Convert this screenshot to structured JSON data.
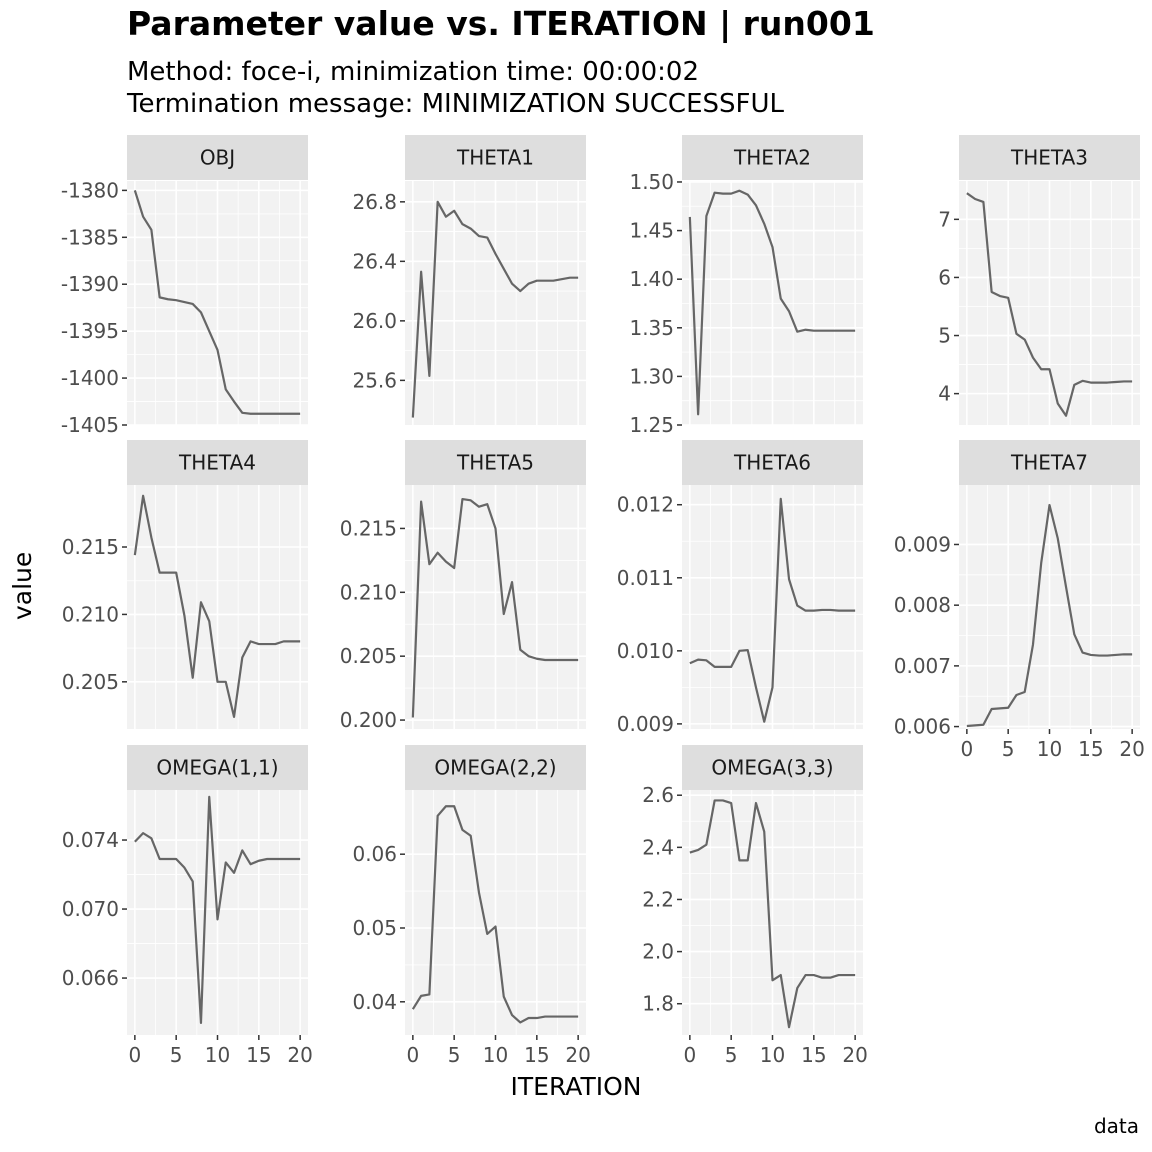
{
  "title": "Parameter value vs. ITERATION | run001",
  "subtitle_line1": "Method: foce-i, minimization time: 00:00:02",
  "subtitle_line2": "Termination message: MINIMIZATION SUCCESSFUL",
  "caption": "data",
  "chart_data": {
    "type": "line",
    "xlabel": "ITERATION",
    "ylabel": "value",
    "facet_layout": "4 columns, free y scales",
    "grid": true,
    "x": [
      0,
      1,
      2,
      3,
      4,
      5,
      6,
      7,
      8,
      9,
      10,
      11,
      12,
      13,
      14,
      15,
      16,
      17,
      18,
      19,
      20
    ],
    "x_ticks": [
      0,
      5,
      10,
      15,
      20
    ],
    "colors": {
      "line": "#666666",
      "panel": "#f2f2f2",
      "strip": "#dedede",
      "grid": "#ffffff"
    },
    "panels": [
      {
        "name": "OBJ",
        "ylim": [
          -1405,
          -1379
        ],
        "y_ticks": [
          -1380,
          -1385,
          -1390,
          -1395,
          -1400,
          -1405
        ],
        "y_tick_labels": [
          "-1380",
          "-1385",
          "-1390",
          "-1395",
          "-1400",
          "-1405"
        ],
        "values": [
          -1380.0,
          -1382.8,
          -1384.2,
          -1391.4,
          -1391.6,
          -1391.7,
          -1391.9,
          -1392.1,
          -1393.0,
          -1395.0,
          -1397.0,
          -1401.2,
          -1402.5,
          -1403.7,
          -1403.8,
          -1403.8,
          -1403.8,
          -1403.8,
          -1403.8,
          -1403.8,
          -1403.8
        ]
      },
      {
        "name": "THETA1",
        "ylim": [
          25.3,
          26.94
        ],
        "y_ticks": [
          25.6,
          26.0,
          26.4,
          26.8
        ],
        "y_tick_labels": [
          "25.6",
          "26.0",
          "26.4",
          "26.8"
        ],
        "values": [
          25.35,
          26.33,
          25.63,
          26.8,
          26.7,
          26.74,
          26.65,
          26.62,
          26.57,
          26.56,
          26.45,
          26.35,
          26.25,
          26.2,
          26.25,
          26.27,
          26.27,
          26.27,
          26.28,
          26.29,
          26.29
        ]
      },
      {
        "name": "THETA2",
        "ylim": [
          1.25,
          1.501
        ],
        "y_ticks": [
          1.25,
          1.3,
          1.35,
          1.4,
          1.45,
          1.5
        ],
        "y_tick_labels": [
          "1.25",
          "1.30",
          "1.35",
          "1.40",
          "1.45",
          "1.50"
        ],
        "values": [
          1.464,
          1.261,
          1.465,
          1.489,
          1.488,
          1.488,
          1.491,
          1.487,
          1.476,
          1.457,
          1.433,
          1.38,
          1.367,
          1.346,
          1.348,
          1.347,
          1.347,
          1.347,
          1.347,
          1.347,
          1.347
        ]
      },
      {
        "name": "THETA3",
        "ylim": [
          3.46,
          7.66
        ],
        "y_ticks": [
          4,
          5,
          6,
          7
        ],
        "y_tick_labels": [
          "4",
          "5",
          "6",
          "7"
        ],
        "values": [
          7.45,
          7.35,
          7.3,
          5.75,
          5.68,
          5.65,
          5.03,
          4.93,
          4.62,
          4.42,
          4.42,
          3.83,
          3.62,
          4.15,
          4.22,
          4.19,
          4.19,
          4.19,
          4.2,
          4.21,
          4.21
        ]
      },
      {
        "name": "THETA4",
        "ylim": [
          0.2015,
          0.2196
        ],
        "y_ticks": [
          0.205,
          0.21,
          0.215
        ],
        "y_tick_labels": [
          "0.205",
          "0.210",
          "0.215"
        ],
        "values": [
          0.2144,
          0.2188,
          0.2157,
          0.2131,
          0.2131,
          0.2131,
          0.2099,
          0.2053,
          0.2109,
          0.2095,
          0.205,
          0.205,
          0.2024,
          0.2068,
          0.208,
          0.2078,
          0.2078,
          0.2078,
          0.208,
          0.208,
          0.208
        ]
      },
      {
        "name": "THETA5",
        "ylim": [
          0.1993,
          0.2184
        ],
        "y_ticks": [
          0.2,
          0.205,
          0.21,
          0.215
        ],
        "y_tick_labels": [
          "0.200",
          "0.205",
          "0.210",
          "0.215"
        ],
        "values": [
          0.2002,
          0.2171,
          0.2122,
          0.2131,
          0.2124,
          0.2119,
          0.2173,
          0.2172,
          0.2167,
          0.2169,
          0.215,
          0.2083,
          0.2108,
          0.2055,
          0.205,
          0.2048,
          0.2047,
          0.2047,
          0.2047,
          0.2047,
          0.2047
        ]
      },
      {
        "name": "THETA6",
        "ylim": [
          0.00893,
          0.01227
        ],
        "y_ticks": [
          0.009,
          0.01,
          0.011,
          0.012
        ],
        "y_tick_labels": [
          "0.009",
          "0.010",
          "0.011",
          "0.012"
        ],
        "values": [
          0.00983,
          0.00988,
          0.00987,
          0.00978,
          0.00978,
          0.00978,
          0.01,
          0.01001,
          0.0095,
          0.00903,
          0.0095,
          0.01208,
          0.01098,
          0.01062,
          0.01055,
          0.01055,
          0.01056,
          0.01056,
          0.01055,
          0.01055,
          0.01055
        ]
      },
      {
        "name": "THETA7",
        "ylim": [
          0.00596,
          0.00998
        ],
        "y_ticks": [
          0.006,
          0.007,
          0.008,
          0.009
        ],
        "y_tick_labels": [
          "0.006",
          "0.007",
          "0.008",
          "0.009"
        ],
        "values": [
          0.00601,
          0.00602,
          0.00603,
          0.00629,
          0.0063,
          0.00631,
          0.00652,
          0.00657,
          0.00735,
          0.0087,
          0.00965,
          0.0091,
          0.0083,
          0.00752,
          0.00722,
          0.00718,
          0.00717,
          0.00717,
          0.00718,
          0.00719,
          0.00719
        ]
      },
      {
        "name": "OMEGA(1,1)",
        "ylim": [
          0.0627,
          0.0769
        ],
        "y_ticks": [
          0.066,
          0.07,
          0.074
        ],
        "y_tick_labels": [
          "0.066",
          "0.070",
          "0.074"
        ],
        "values": [
          0.0739,
          0.0744,
          0.0741,
          0.0729,
          0.0729,
          0.0729,
          0.0724,
          0.0716,
          0.0634,
          0.0765,
          0.0694,
          0.0727,
          0.0721,
          0.0734,
          0.0726,
          0.0728,
          0.0729,
          0.0729,
          0.0729,
          0.0729,
          0.0729
        ]
      },
      {
        "name": "OMEGA(2,2)",
        "ylim": [
          0.0355,
          0.0687
        ],
        "y_ticks": [
          0.04,
          0.05,
          0.06
        ],
        "y_tick_labels": [
          "0.04",
          "0.05",
          "0.06"
        ],
        "values": [
          0.039,
          0.0408,
          0.041,
          0.0652,
          0.0665,
          0.0665,
          0.0633,
          0.0625,
          0.0548,
          0.0492,
          0.0502,
          0.0407,
          0.0382,
          0.0372,
          0.0378,
          0.0378,
          0.038,
          0.038,
          0.038,
          0.038,
          0.038
        ]
      },
      {
        "name": "OMEGA(3,3)",
        "ylim": [
          1.68,
          2.62
        ],
        "y_ticks": [
          1.8,
          2.0,
          2.2,
          2.4,
          2.6
        ],
        "y_tick_labels": [
          "1.8",
          "2.0",
          "2.2",
          "2.4",
          "2.6"
        ],
        "values": [
          2.38,
          2.39,
          2.41,
          2.58,
          2.58,
          2.57,
          2.35,
          2.35,
          2.57,
          2.46,
          1.89,
          1.91,
          1.71,
          1.86,
          1.91,
          1.91,
          1.9,
          1.9,
          1.91,
          1.91,
          1.91
        ]
      }
    ]
  }
}
